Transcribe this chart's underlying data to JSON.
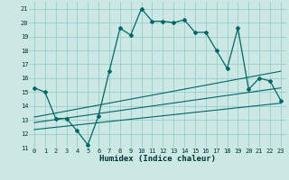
{
  "title": "",
  "xlabel": "Humidex (Indice chaleur)",
  "background_color": "#cce8e4",
  "line_color": "#006666",
  "grid_color": "#99cccc",
  "xlim": [
    -0.5,
    23.5
  ],
  "ylim": [
    11,
    21.5
  ],
  "yticks": [
    11,
    12,
    13,
    14,
    15,
    16,
    17,
    18,
    19,
    20,
    21
  ],
  "xticks": [
    0,
    1,
    2,
    3,
    4,
    5,
    6,
    7,
    8,
    9,
    10,
    11,
    12,
    13,
    14,
    15,
    16,
    17,
    18,
    19,
    20,
    21,
    22,
    23
  ],
  "main_curve_x": [
    0,
    1,
    2,
    3,
    4,
    5,
    6,
    7,
    8,
    9,
    10,
    11,
    12,
    13,
    14,
    15,
    16,
    17,
    18,
    19,
    20,
    21,
    22,
    23
  ],
  "main_curve_y": [
    15.3,
    15.0,
    13.1,
    13.1,
    12.2,
    11.2,
    13.3,
    16.5,
    19.6,
    19.1,
    21.0,
    20.1,
    20.1,
    20.0,
    20.2,
    19.3,
    19.3,
    18.0,
    16.7,
    19.6,
    15.2,
    16.0,
    15.8,
    14.4
  ],
  "line1_x": [
    0,
    23
  ],
  "line1_y": [
    13.2,
    16.5
  ],
  "line2_x": [
    0,
    23
  ],
  "line2_y": [
    12.8,
    15.3
  ],
  "line3_x": [
    0,
    23
  ],
  "line3_y": [
    12.3,
    14.2
  ]
}
